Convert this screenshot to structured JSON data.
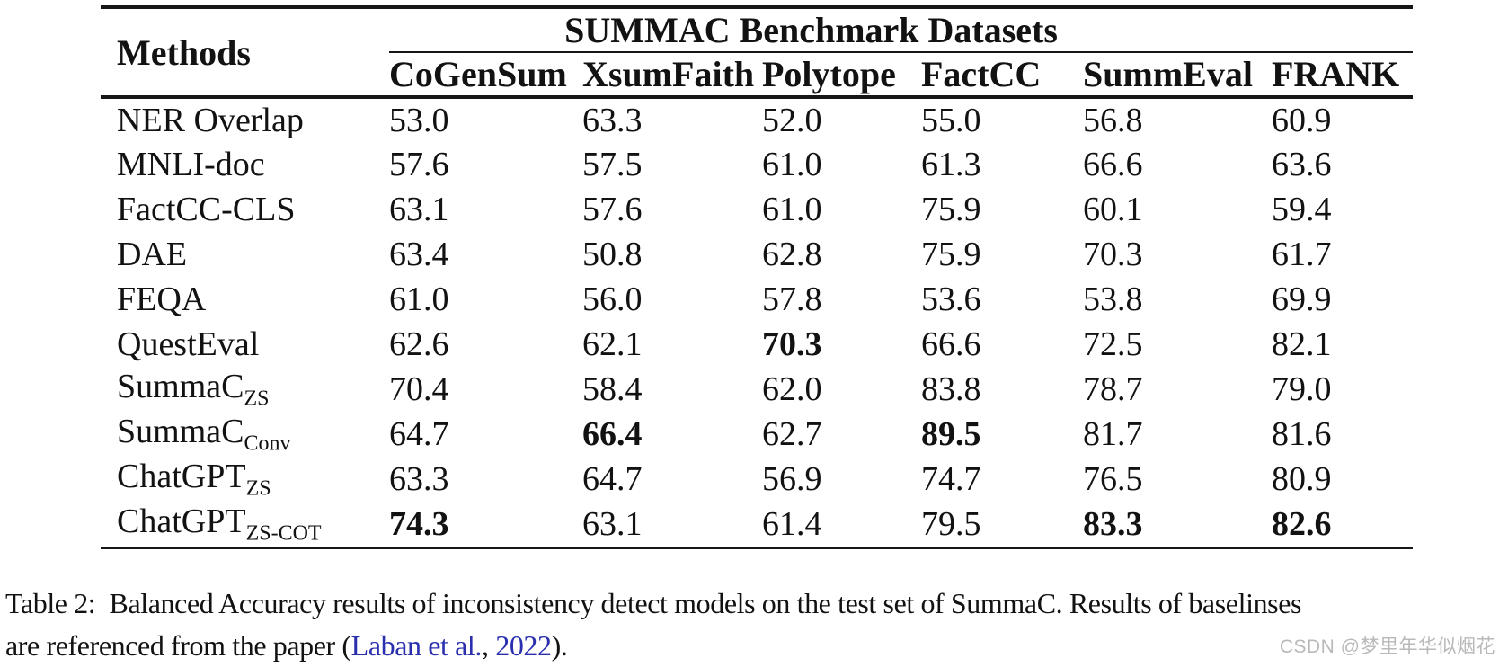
{
  "table": {
    "methods_header": "Methods",
    "span_header": "SUMMAC Benchmark Datasets",
    "columns": [
      "CoGenSum",
      "XsumFaith",
      "Polytope",
      "FactCC",
      "SummEval",
      "FRANK"
    ],
    "rows": [
      {
        "method": "NER Overlap",
        "sub": "",
        "values": [
          "53.0",
          "63.3",
          "52.0",
          "55.0",
          "56.8",
          "60.9"
        ],
        "bold": [
          false,
          false,
          false,
          false,
          false,
          false
        ]
      },
      {
        "method": "MNLI-doc",
        "sub": "",
        "values": [
          "57.6",
          "57.5",
          "61.0",
          "61.3",
          "66.6",
          "63.6"
        ],
        "bold": [
          false,
          false,
          false,
          false,
          false,
          false
        ]
      },
      {
        "method": "FactCC-CLS",
        "sub": "",
        "values": [
          "63.1",
          "57.6",
          "61.0",
          "75.9",
          "60.1",
          "59.4"
        ],
        "bold": [
          false,
          false,
          false,
          false,
          false,
          false
        ]
      },
      {
        "method": "DAE",
        "sub": "",
        "values": [
          "63.4",
          "50.8",
          "62.8",
          "75.9",
          "70.3",
          "61.7"
        ],
        "bold": [
          false,
          false,
          false,
          false,
          false,
          false
        ]
      },
      {
        "method": "FEQA",
        "sub": "",
        "values": [
          "61.0",
          "56.0",
          "57.8",
          "53.6",
          "53.8",
          "69.9"
        ],
        "bold": [
          false,
          false,
          false,
          false,
          false,
          false
        ]
      },
      {
        "method": "QuestEval",
        "sub": "",
        "values": [
          "62.6",
          "62.1",
          "70.3",
          "66.6",
          "72.5",
          "82.1"
        ],
        "bold": [
          false,
          false,
          true,
          false,
          false,
          false
        ]
      },
      {
        "method": "SummaC",
        "sub": "ZS",
        "values": [
          "70.4",
          "58.4",
          "62.0",
          "83.8",
          "78.7",
          "79.0"
        ],
        "bold": [
          false,
          false,
          false,
          false,
          false,
          false
        ]
      },
      {
        "method": "SummaC",
        "sub": "Conv",
        "values": [
          "64.7",
          "66.4",
          "62.7",
          "89.5",
          "81.7",
          "81.6"
        ],
        "bold": [
          false,
          true,
          false,
          true,
          false,
          false
        ]
      },
      {
        "method": "ChatGPT",
        "sub": "ZS",
        "values": [
          "63.3",
          "64.7",
          "56.9",
          "74.7",
          "76.5",
          "80.9"
        ],
        "bold": [
          false,
          false,
          false,
          false,
          false,
          false
        ]
      },
      {
        "method": "ChatGPT",
        "sub": "ZS-COT",
        "values": [
          "74.3",
          "63.1",
          "61.4",
          "79.5",
          "83.3",
          "82.6"
        ],
        "bold": [
          true,
          false,
          false,
          false,
          true,
          true
        ]
      }
    ]
  },
  "caption": {
    "line1": "Table 2:  Balanced Accuracy results of inconsistency detect models on the test set of SummaC. Results of baselinses",
    "line2_prefix": "are referenced from the paper (",
    "link_author": "Laban et al.",
    "separator": ", ",
    "link_year": "2022",
    "line2_suffix": ").",
    "link_color": "#2a2fae"
  },
  "watermark": "CSDN @梦里年华似烟花"
}
